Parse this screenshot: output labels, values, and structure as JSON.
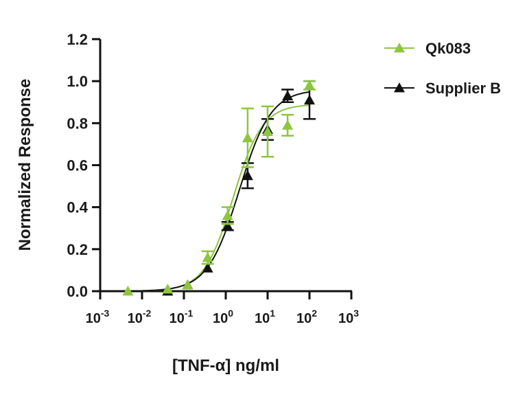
{
  "chart_data": {
    "type": "scatter",
    "title": "",
    "xlabel": "[TNF-α] ng/ml",
    "ylabel": "Normalized Response",
    "xscale": "log",
    "xlim": [
      0.001,
      1000
    ],
    "ylim": [
      0,
      1.2
    ],
    "x_ticks": [
      {
        "base": "10",
        "exp": "-3"
      },
      {
        "base": "10",
        "exp": "-2"
      },
      {
        "base": "10",
        "exp": "-1"
      },
      {
        "base": "10",
        "exp": "0"
      },
      {
        "base": "10",
        "exp": "1"
      },
      {
        "base": "10",
        "exp": "2"
      },
      {
        "base": "10",
        "exp": "3"
      }
    ],
    "y_ticks": [
      "0.0",
      "0.2",
      "0.4",
      "0.6",
      "0.8",
      "1.0",
      "1.2"
    ],
    "legend_position": "top-right",
    "series": [
      {
        "name": "Qk083",
        "color": "#8cc63f",
        "marker": "triangle",
        "x": [
          0.0046,
          0.041,
          0.123,
          0.37,
          1.11,
          3.33,
          10,
          30,
          100
        ],
        "y": [
          0.0,
          0.01,
          0.03,
          0.16,
          0.36,
          0.73,
          0.76,
          0.79,
          0.98
        ],
        "err": [
          0,
          0,
          0,
          0.03,
          0.04,
          0.14,
          0.12,
          0.05,
          0.02
        ],
        "fit": {
          "bottom": 0.0,
          "top": 0.89,
          "ec50": 1.5,
          "hill": 1.25
        }
      },
      {
        "name": "Supplier B",
        "color": "#111111",
        "marker": "triangle",
        "x": [
          0.041,
          0.123,
          0.37,
          1.11,
          3.33,
          10,
          30,
          100
        ],
        "y": [
          0.0,
          0.03,
          0.11,
          0.31,
          0.55,
          0.77,
          0.93,
          0.91
        ],
        "err": [
          0,
          0,
          0,
          0.02,
          0.06,
          0.05,
          0.03,
          0.09
        ],
        "fit": {
          "bottom": 0.0,
          "top": 0.96,
          "ec50": 2.1,
          "hill": 1.15
        }
      }
    ]
  }
}
